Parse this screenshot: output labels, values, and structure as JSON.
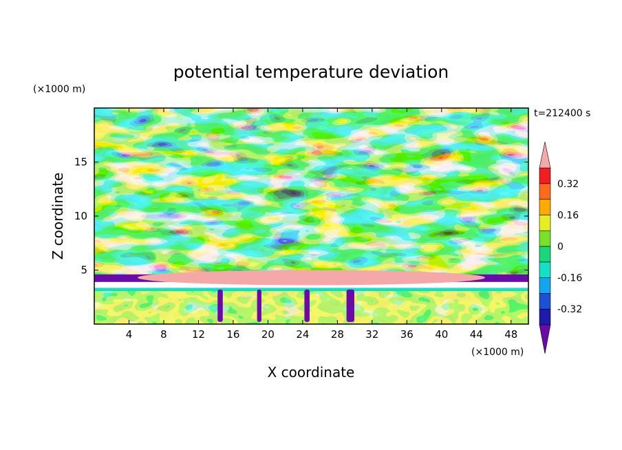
{
  "chart_data": {
    "type": "heatmap",
    "title": "potential temperature deviation",
    "xlabel": "X coordinate",
    "ylabel": "Z coordinate",
    "x_unit": "(×1000 m)",
    "y_unit": "(×1000 m)",
    "time_label": "t=212400 s",
    "xlim": [
      0,
      50
    ],
    "ylim": [
      0,
      20
    ],
    "x_ticks": [
      4,
      8,
      12,
      16,
      20,
      24,
      28,
      32,
      36,
      40,
      44,
      48
    ],
    "y_ticks": [
      5,
      10,
      15
    ],
    "colorbar": {
      "labels": [
        "0.32",
        "0.16",
        "0",
        "-0.16",
        "-0.32"
      ],
      "label_values": [
        0.32,
        0.16,
        0,
        -0.16,
        -0.32
      ],
      "levels": [
        -0.4,
        -0.32,
        -0.24,
        -0.16,
        -0.08,
        0,
        0.08,
        0.16,
        0.24,
        0.32,
        0.4
      ],
      "colors": [
        "#6a0aa8",
        "#1c1ca8",
        "#1b50d8",
        "#13a5f0",
        "#14e0c8",
        "#19d77a",
        "#78e22a",
        "#e6ee22",
        "#ffaa00",
        "#ff6a1a",
        "#f01e1e",
        "#f5a8a8"
      ]
    }
  }
}
